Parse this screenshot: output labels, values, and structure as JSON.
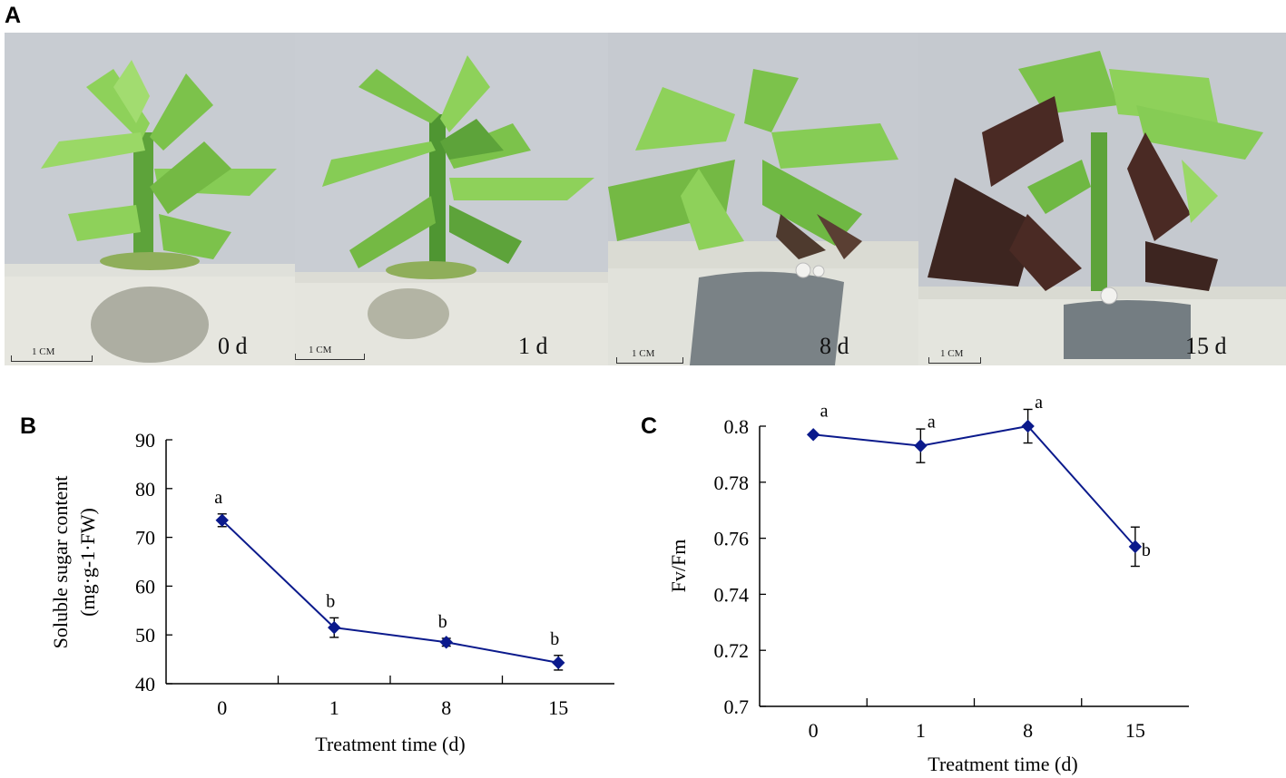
{
  "panels": {
    "a_label": "A",
    "b_label": "B",
    "c_label": "C"
  },
  "photos": [
    {
      "day_label": "0 d",
      "scale_text": "1 CM",
      "condition": "healthy"
    },
    {
      "day_label": "1 d",
      "scale_text": "1 CM",
      "condition": "healthy"
    },
    {
      "day_label": "8 d",
      "scale_text": "1 CM",
      "condition": "slight-darkening"
    },
    {
      "day_label": "15 d",
      "scale_text": "1 CM",
      "condition": "necrotic"
    }
  ],
  "colors": {
    "series": "#0b1a8c",
    "leaf_green": "#8ed15a",
    "leaf_dark": "#5b9a2e",
    "necrotic": "#4a2a24",
    "background": "#c9cdd3",
    "medium": "#e3e4df"
  },
  "chart_data": [
    {
      "type": "line",
      "panel": "B",
      "categories": [
        "0",
        "1",
        "8",
        "15"
      ],
      "values": [
        73.5,
        51.5,
        48.5,
        44.3
      ],
      "error": [
        1.3,
        2.0,
        0.8,
        1.5
      ],
      "significance": [
        "a",
        "b",
        "b",
        "b"
      ],
      "ylabel": "Soluble sugar content",
      "ylabel2": "(mg·g-1·FW)",
      "xlabel": "Treatment time (d)",
      "ylim": [
        40,
        90
      ],
      "yticks": [
        "90",
        "80",
        "70",
        "60",
        "50",
        "40"
      ],
      "marker": "diamond",
      "grid": false
    },
    {
      "type": "line",
      "panel": "C",
      "categories": [
        "0",
        "1",
        "8",
        "15"
      ],
      "values": [
        0.797,
        0.793,
        0.8,
        0.757
      ],
      "error": [
        0,
        0.006,
        0.006,
        0.007
      ],
      "significance": [
        "a",
        "a",
        "a",
        "b"
      ],
      "ylabel": "Fv/Fm",
      "xlabel": "Treatment time (d)",
      "ylim": [
        0.7,
        0.8
      ],
      "yticks": [
        "0.8",
        "0.78",
        "0.76",
        "0.74",
        "0.72",
        "0.7"
      ],
      "marker": "diamond",
      "grid": false
    }
  ]
}
